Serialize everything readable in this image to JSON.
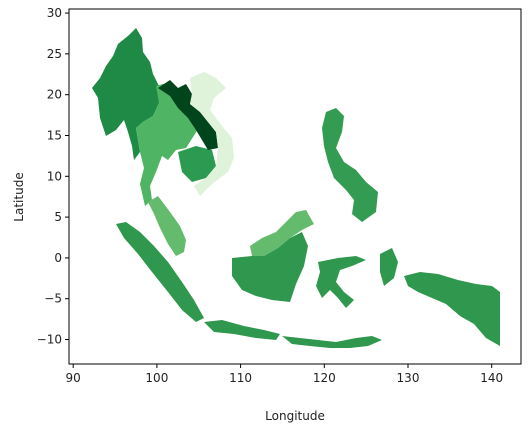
{
  "chart_data": {
    "type": "choropleth",
    "xlabel": "Longitude",
    "ylabel": "Latitude",
    "xlim": [
      89.5,
      143.5
    ],
    "ylim": [
      -13,
      30.5
    ],
    "xticks": [
      90,
      100,
      110,
      120,
      130,
      140
    ],
    "yticks": [
      -10,
      -5,
      0,
      5,
      10,
      15,
      20,
      25,
      30
    ],
    "xtick_labels": [
      "90",
      "100",
      "110",
      "120",
      "130",
      "140"
    ],
    "ytick_labels": [
      "−10",
      "−5",
      "0",
      "5",
      "10",
      "15",
      "20",
      "25",
      "30"
    ],
    "colormap": "Greens",
    "grid": false,
    "regions": [
      {
        "id": "myanmar",
        "color": "#1f8a45"
      },
      {
        "id": "thailand",
        "color": "#4fb464"
      },
      {
        "id": "laos",
        "color": "#00451c"
      },
      {
        "id": "vietnam",
        "color": "#dff2da"
      },
      {
        "id": "cambodia",
        "color": "#2d9a52"
      },
      {
        "id": "malaysia-peninsula",
        "color": "#64bb6e"
      },
      {
        "id": "malaysia-borneo",
        "color": "#64bb6e"
      },
      {
        "id": "indonesia",
        "color": "#2f974e"
      },
      {
        "id": "philippines",
        "color": "#339c52"
      },
      {
        "id": "papua",
        "color": "#2f974e"
      }
    ]
  }
}
